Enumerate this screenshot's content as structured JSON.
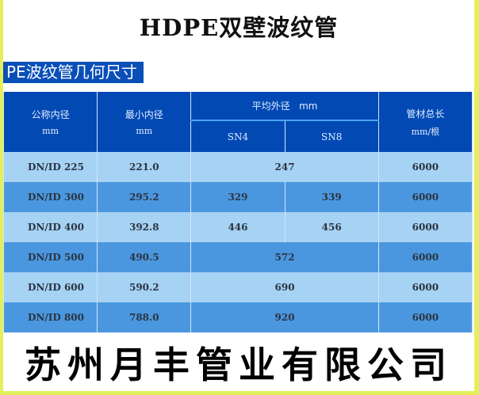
{
  "title": "HDPE双壁波纹管",
  "section_tag": "PE波纹管几何尺寸",
  "table": {
    "headers": {
      "nominal": "公称内径",
      "nominal_unit": "mm",
      "min_inner": "最小内径",
      "min_inner_unit": "mm",
      "avg_outer": "平均外径   mm",
      "sn4": "SN4",
      "sn8": "SN8",
      "length": "管材总长",
      "length_unit": "mm/根"
    },
    "rows": [
      {
        "dn": "DN/ID 225",
        "min": "221.0",
        "outer": "247",
        "length": "6000"
      },
      {
        "dn": "DN/ID 300",
        "min": "295.2",
        "sn4": "329",
        "sn8": "339",
        "length": "6000"
      },
      {
        "dn": "DN/ID 400",
        "min": "392.8",
        "sn4": "446",
        "sn8": "456",
        "length": "6000"
      },
      {
        "dn": "DN/ID 500",
        "min": "490.5",
        "outer": "572",
        "length": "6000"
      },
      {
        "dn": "DN/ID 600",
        "min": "590.2",
        "outer": "690",
        "length": "6000"
      },
      {
        "dn": "DN/ID 800",
        "min": "788.0",
        "outer": "920",
        "length": "6000"
      }
    ]
  },
  "company": "苏州月丰管业有限公司",
  "colors": {
    "border": "#e4f05a",
    "header": "#0349b4",
    "row_light": "#a6d2f4",
    "row_dark": "#4b97df"
  }
}
